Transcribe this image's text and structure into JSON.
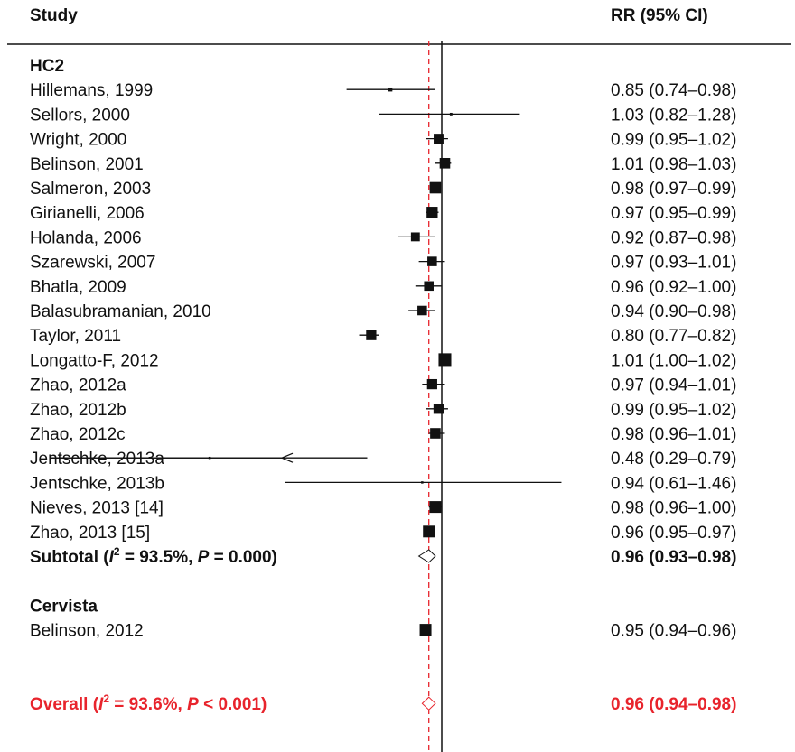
{
  "chart_data": {
    "type": "forest",
    "header": {
      "study": "Study",
      "estimate": "RR (95% CI)"
    },
    "x_scale": "log",
    "null_value": 1.0,
    "pooled_reference": 0.96,
    "colors": {
      "ink": "#111111",
      "overall": "#e8242c"
    },
    "rows": [
      {
        "kind": "group",
        "label": "HC2"
      },
      {
        "kind": "study",
        "label": "Hillemans, 1999",
        "rr": 0.85,
        "lo": 0.74,
        "hi": 0.98,
        "ci_text": "0.85 (0.74–0.98)",
        "weight": 1.5
      },
      {
        "kind": "study",
        "label": "Sellors, 2000",
        "rr": 1.03,
        "lo": 0.82,
        "hi": 1.28,
        "ci_text": "1.03 (0.82–1.28)",
        "weight": 0.6
      },
      {
        "kind": "study",
        "label": "Wright, 2000",
        "rr": 0.99,
        "lo": 0.95,
        "hi": 1.02,
        "ci_text": "0.99 (0.95–1.02)",
        "weight": 5.2
      },
      {
        "kind": "study",
        "label": "Belinson, 2001",
        "rr": 1.01,
        "lo": 0.98,
        "hi": 1.03,
        "ci_text": "1.01 (0.98–1.03)",
        "weight": 5.6
      },
      {
        "kind": "study",
        "label": "Salmeron, 2003",
        "rr": 0.98,
        "lo": 0.97,
        "hi": 0.99,
        "ci_text": "0.98 (0.97–0.99)",
        "weight": 6.2
      },
      {
        "kind": "study",
        "label": "Girianelli, 2006",
        "rr": 0.97,
        "lo": 0.95,
        "hi": 0.99,
        "ci_text": "0.97 (0.95–0.99)",
        "weight": 6.0
      },
      {
        "kind": "study",
        "label": "Holanda, 2006",
        "rr": 0.92,
        "lo": 0.87,
        "hi": 0.98,
        "ci_text": "0.92 (0.87–0.98)",
        "weight": 4.6
      },
      {
        "kind": "study",
        "label": "Szarewski, 2007",
        "rr": 0.97,
        "lo": 0.93,
        "hi": 1.01,
        "ci_text": "0.97 (0.93–1.01)",
        "weight": 5.0
      },
      {
        "kind": "study",
        "label": "Bhatla, 2009",
        "rr": 0.96,
        "lo": 0.92,
        "hi": 1.0,
        "ci_text": "0.96 (0.92–1.00)",
        "weight": 5.0
      },
      {
        "kind": "study",
        "label": "Balasubramanian, 2010",
        "rr": 0.94,
        "lo": 0.9,
        "hi": 0.98,
        "ci_text": "0.94 (0.90–0.98)",
        "weight": 5.0
      },
      {
        "kind": "study",
        "label": "Taylor, 2011",
        "rr": 0.8,
        "lo": 0.77,
        "hi": 0.82,
        "ci_text": "0.80 (0.77–0.82)",
        "weight": 5.4
      },
      {
        "kind": "study",
        "label": "Longatto-F, 2012",
        "rr": 1.01,
        "lo": 1.0,
        "hi": 1.02,
        "ci_text": "1.01 (1.00–1.02)",
        "weight": 7.0
      },
      {
        "kind": "study",
        "label": "Zhao, 2012a",
        "rr": 0.97,
        "lo": 0.94,
        "hi": 1.01,
        "ci_text": "0.97 (0.94–1.01)",
        "weight": 5.4
      },
      {
        "kind": "study",
        "label": "Zhao, 2012b",
        "rr": 0.99,
        "lo": 0.95,
        "hi": 1.02,
        "ci_text": "0.99 (0.95–1.02)",
        "weight": 5.4
      },
      {
        "kind": "study",
        "label": "Zhao, 2012c",
        "rr": 0.98,
        "lo": 0.96,
        "hi": 1.01,
        "ci_text": "0.98 (0.96–1.01)",
        "weight": 5.6
      },
      {
        "kind": "study",
        "label": "Jentschke, 2013a",
        "rr": 0.48,
        "lo": 0.29,
        "hi": 0.79,
        "ci_text": "0.48 (0.29–0.79)",
        "weight": 0.4,
        "arrow_left": true
      },
      {
        "kind": "study",
        "label": "Jentschke, 2013b",
        "rr": 0.94,
        "lo": 0.61,
        "hi": 1.46,
        "ci_text": "0.94 (0.61–1.46)",
        "weight": 0.4
      },
      {
        "kind": "study",
        "label": "Nieves, 2013 [14]",
        "rr": 0.98,
        "lo": 0.96,
        "hi": 1.0,
        "ci_text": "0.98 (0.96–1.00)",
        "weight": 6.4
      },
      {
        "kind": "study",
        "label": "Zhao, 2013 [15]",
        "rr": 0.96,
        "lo": 0.95,
        "hi": 0.97,
        "ci_text": "0.96 (0.95–0.97)",
        "weight": 6.4
      },
      {
        "kind": "subtotal",
        "label_pre": "Subtotal  (",
        "label_i": "I",
        "label_sup": "2",
        "label_mid": " = 93.5%, ",
        "label_p": "P",
        "label_post": " = 0.000)",
        "rr": 0.96,
        "lo": 0.93,
        "hi": 0.98,
        "ci_text": "0.96 (0.93–0.98)"
      },
      {
        "kind": "spacer"
      },
      {
        "kind": "group",
        "label": "Cervista"
      },
      {
        "kind": "study",
        "label": "Belinson, 2012",
        "rr": 0.95,
        "lo": 0.94,
        "hi": 0.96,
        "ci_text": "0.95 (0.94–0.96)",
        "weight": 6.4
      },
      {
        "kind": "spacer"
      },
      {
        "kind": "spacer"
      },
      {
        "kind": "overall",
        "label_pre": "Overall  (",
        "label_i": "I",
        "label_sup": "2",
        "label_mid": " = 93.6%, ",
        "label_p": "P",
        "label_post": " < 0.001)",
        "rr": 0.96,
        "lo": 0.94,
        "hi": 0.98,
        "ci_text": "0.96 (0.94–0.98)"
      }
    ]
  }
}
